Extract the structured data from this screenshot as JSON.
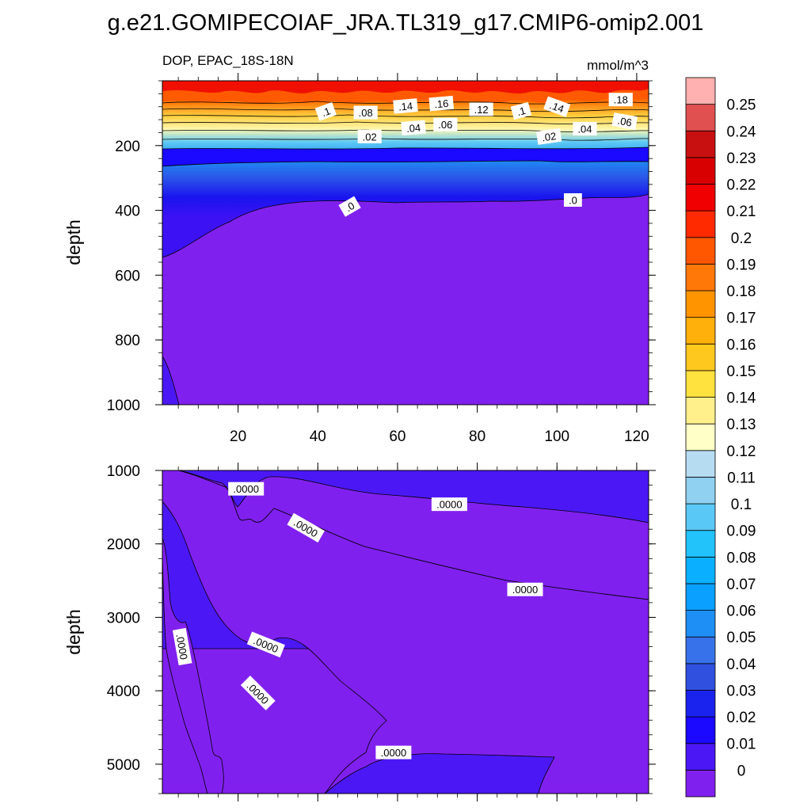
{
  "chart_data": {
    "type": "contour",
    "title": "g.e21.GOMIPECOIAF_JRA.TL319_g17.CMIP6-omip2.001",
    "panels": [
      {
        "id": "upper",
        "left_label": "DOP, EPAC_18S-18N",
        "right_label": "mmol/m^3",
        "ylabel": "depth",
        "xlim": [
          1,
          123
        ],
        "ylim": [
          0,
          1000
        ],
        "y_reversed": true,
        "x_ticks": [
          20,
          40,
          60,
          80,
          100,
          120
        ],
        "x_tick_labels": [
          "20",
          "40",
          "60",
          "80",
          "100",
          "120"
        ],
        "y_ticks": [
          200,
          400,
          600,
          800,
          1000
        ],
        "y_tick_labels": [
          "200",
          "400",
          "600",
          "800",
          "1000"
        ],
        "contour_labels": [
          {
            "text": ".1",
            "x": 42,
            "y": 95,
            "angle": -20
          },
          {
            "text": ".08",
            "x": 52,
            "y": 98,
            "angle": 0
          },
          {
            "text": ".14",
            "x": 62,
            "y": 78,
            "angle": -5
          },
          {
            "text": ".16",
            "x": 71,
            "y": 70,
            "angle": -5
          },
          {
            "text": ".12",
            "x": 81,
            "y": 88,
            "angle": 0
          },
          {
            "text": ".1",
            "x": 91,
            "y": 93,
            "angle": -15
          },
          {
            "text": ".14",
            "x": 100,
            "y": 80,
            "angle": 20
          },
          {
            "text": ".18",
            "x": 116,
            "y": 58,
            "angle": 0
          },
          {
            "text": ".04",
            "x": 64,
            "y": 145,
            "angle": -5
          },
          {
            "text": ".06",
            "x": 72,
            "y": 135,
            "angle": 0
          },
          {
            "text": ".02",
            "x": 53,
            "y": 172,
            "angle": 0
          },
          {
            "text": ".02",
            "x": 98,
            "y": 172,
            "angle": -8
          },
          {
            "text": ".04",
            "x": 107,
            "y": 148,
            "angle": 0
          },
          {
            "text": ".06",
            "x": 117,
            "y": 125,
            "angle": 10
          },
          {
            "text": ".0",
            "x": 48,
            "y": 388,
            "angle": -30
          },
          {
            "text": ".0",
            "x": 104,
            "y": 368,
            "angle": 0
          }
        ]
      },
      {
        "id": "lower",
        "ylabel": "depth",
        "xlim": [
          1,
          123
        ],
        "ylim": [
          1000,
          5400
        ],
        "y_reversed": true,
        "y_ticks": [
          1000,
          2000,
          3000,
          4000,
          5000
        ],
        "y_tick_labels": [
          "1000",
          "2000",
          "3000",
          "4000",
          "5000"
        ],
        "contour_labels": [
          {
            "text": ".0000",
            "x": 22,
            "y": 1250,
            "angle": 0
          },
          {
            "text": ".0000",
            "x": 37,
            "y": 1780,
            "angle": 30
          },
          {
            "text": ".0000",
            "x": 73,
            "y": 1460,
            "angle": 0
          },
          {
            "text": ".0000",
            "x": 92,
            "y": 2620,
            "angle": 0
          },
          {
            "text": ".0000",
            "x": 6,
            "y": 3400,
            "angle": 80
          },
          {
            "text": ".0000",
            "x": 27,
            "y": 3370,
            "angle": 22
          },
          {
            "text": ".0000",
            "x": 25,
            "y": 4030,
            "angle": 45
          },
          {
            "text": ".0000",
            "x": 59,
            "y": 4840,
            "angle": 0
          }
        ]
      }
    ],
    "colorbar": {
      "levels": [
        "0",
        "0.01",
        "0.02",
        "0.03",
        "0.04",
        "0.05",
        "0.06",
        "0.07",
        "0.08",
        "0.09",
        "0.1",
        "0.11",
        "0.12",
        "0.13",
        "0.14",
        "0.15",
        "0.16",
        "0.17",
        "0.18",
        "0.19",
        "0.2",
        "0.21",
        "0.22",
        "0.23",
        "0.24",
        "0.25"
      ],
      "colors": [
        "#8020ee",
        "#4b18f5",
        "#1a08ff",
        "#1a22ee",
        "#3050e0",
        "#3872ea",
        "#1e8ff5",
        "#0aa0ff",
        "#0ab0ff",
        "#22c2fa",
        "#5ac8f6",
        "#90d0f0",
        "#b6dcf2",
        "#ffffc8",
        "#fff08c",
        "#ffe23e",
        "#ffc81e",
        "#ffb00a",
        "#ff9400",
        "#ff7808",
        "#ff5600",
        "#ff2a00",
        "#f00000",
        "#d80000",
        "#c81010",
        "#e05050",
        "#ffb0b0"
      ]
    }
  }
}
